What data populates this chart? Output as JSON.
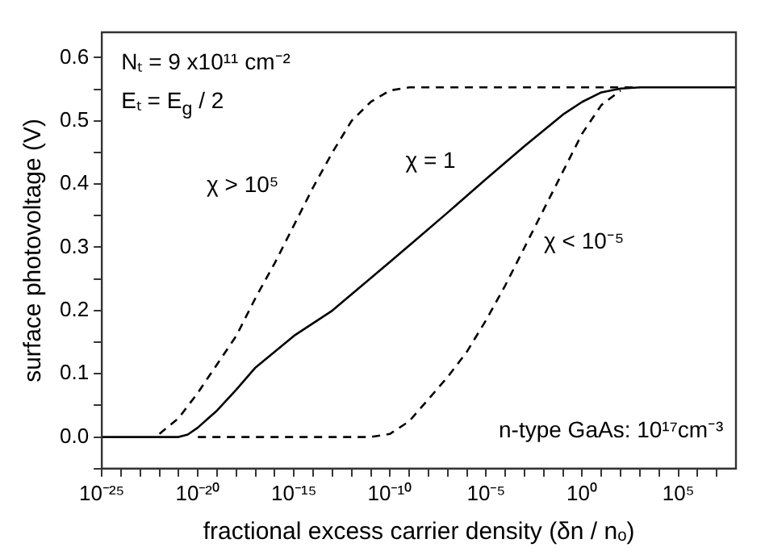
{
  "chart_data": {
    "type": "line",
    "xlabel": "fractional excess carrier density (δn / nₒ)",
    "ylabel": "surface photovoltage (V)",
    "annotations": [
      "Nₜ = 9 x10¹¹ cm⁻²",
      "Eₜ = E$_{g}$ / 2",
      "n-type GaAs: 10¹⁷cm⁻³"
    ],
    "log": "x",
    "xlim": [
      1e-25,
      100000000.0
    ],
    "xticks": [
      {
        "value": 1e-25,
        "label": "10⁻²⁵"
      },
      {
        "value": 1e-24,
        "label": null
      },
      {
        "value": 1e-23,
        "label": null
      },
      {
        "value": 1e-22,
        "label": null
      },
      {
        "value": 1e-21,
        "label": null
      },
      {
        "value": 1e-20,
        "label": "10⁻²⁰"
      },
      {
        "value": 1e-19,
        "label": null
      },
      {
        "value": 1e-18,
        "label": null
      },
      {
        "value": 1e-17,
        "label": null
      },
      {
        "value": 1e-16,
        "label": null
      },
      {
        "value": 1e-15,
        "label": "10⁻¹⁵"
      },
      {
        "value": 1e-14,
        "label": null
      },
      {
        "value": 1e-13,
        "label": null
      },
      {
        "value": 1e-12,
        "label": null
      },
      {
        "value": 1e-11,
        "label": null
      },
      {
        "value": 1e-10,
        "label": "10⁻¹⁰"
      },
      {
        "value": 1e-09,
        "label": null
      },
      {
        "value": 1e-08,
        "label": null
      },
      {
        "value": 1e-07,
        "label": null
      },
      {
        "value": 1e-06,
        "label": null
      },
      {
        "value": 1e-05,
        "label": "10⁻⁵"
      },
      {
        "value": 0.0001,
        "label": null
      },
      {
        "value": 0.001,
        "label": null
      },
      {
        "value": 0.01,
        "label": null
      },
      {
        "value": 0.1,
        "label": null
      },
      {
        "value": 1,
        "label": "10⁰"
      },
      {
        "value": 10,
        "label": null
      },
      {
        "value": 100,
        "label": null
      },
      {
        "value": 1000,
        "label": null
      },
      {
        "value": 10000,
        "label": null
      },
      {
        "value": 100000,
        "label": "10⁵"
      },
      {
        "value": 1000000,
        "label": null
      },
      {
        "value": 10000000,
        "label": null
      }
    ],
    "ylim": [
      -0.05,
      0.64
    ],
    "yticks": [
      {
        "value": -0.05,
        "label": null
      },
      {
        "value": 0,
        "label": "0.0"
      },
      {
        "value": 0.05,
        "label": null
      },
      0.1,
      {
        "value": 0.15,
        "label": null
      },
      0.2,
      {
        "value": 0.25,
        "label": null
      },
      0.3,
      {
        "value": 0.35,
        "label": null
      },
      0.4,
      {
        "value": 0.45,
        "label": null
      },
      0.5,
      {
        "value": 0.55,
        "label": null
      },
      0.6
    ],
    "grid": false,
    "legend": false,
    "marker": "none",
    "series": [
      {
        "name": "χ > 10⁵",
        "color": "#000000",
        "line_style": "dashed",
        "x": [
          1e-22,
          1e-21,
          1e-20,
          1e-19,
          1e-18,
          1e-17,
          1e-16,
          1e-15,
          1e-14,
          1e-13,
          1e-12,
          1e-11,
          1e-10,
          1e-09,
          1000
        ],
        "values": [
          0.005,
          0.03,
          0.07,
          0.115,
          0.16,
          0.22,
          0.275,
          0.335,
          0.395,
          0.45,
          0.5,
          0.53,
          0.548,
          0.553,
          0.553
        ]
      },
      {
        "name": "χ = 1",
        "color": "#000000",
        "line_style": "solid",
        "x": [
          1e-25,
          1e-21,
          3e-21,
          1e-20,
          1e-19,
          1e-18,
          1e-17,
          1e-15,
          1e-13,
          1e-10,
          1e-07,
          1e-05,
          0.001,
          0.01,
          0.1,
          1,
          10,
          100,
          1000,
          100000000.0
        ],
        "values": [
          0,
          0,
          0.004,
          0.015,
          0.042,
          0.075,
          0.11,
          0.16,
          0.2,
          0.277,
          0.355,
          0.408,
          0.46,
          0.485,
          0.51,
          0.53,
          0.545,
          0.551,
          0.553,
          0.553
        ]
      },
      {
        "name": "χ < 10⁻⁵",
        "color": "#000000",
        "line_style": "dashed",
        "x": [
          1e-20,
          1e-11,
          1e-10,
          1e-09,
          1e-08,
          1e-07,
          1e-06,
          1e-05,
          0.0001,
          0.001,
          0.01,
          0.1,
          1,
          10,
          100
        ],
        "values": [
          0,
          0,
          0.005,
          0.025,
          0.06,
          0.095,
          0.135,
          0.185,
          0.24,
          0.3,
          0.36,
          0.42,
          0.48,
          0.525,
          0.548
        ]
      }
    ]
  }
}
